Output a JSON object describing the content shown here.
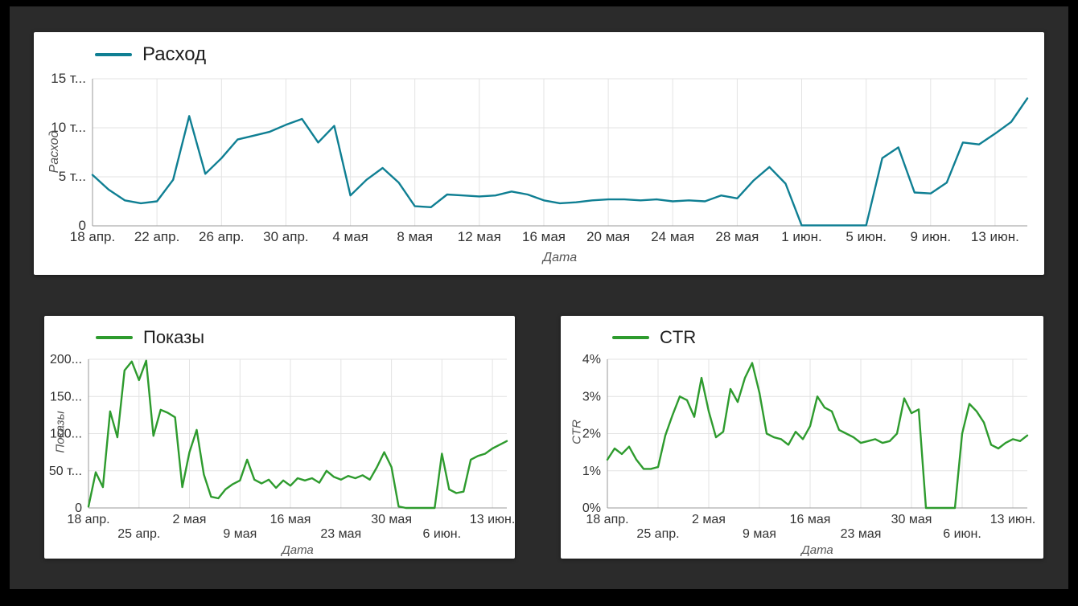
{
  "page": {
    "background_color": "#2b2b2b",
    "frame_color": "#000000",
    "card_color": "#ffffff"
  },
  "chart_data": [
    {
      "type": "line",
      "legend_label": "Расход",
      "ylabel": "Расход",
      "xlabel": "Дата",
      "line_color": "#0f7f93",
      "ymax": 15000,
      "ylim": [
        0,
        15000
      ],
      "grid": true,
      "legend_position": "top-left",
      "y_ticks": [
        0,
        5000,
        10000,
        15000
      ],
      "y_tick_labels": [
        "0",
        "5 т...",
        "10 т...",
        "15 т..."
      ],
      "x_tick_days": [
        0,
        4,
        8,
        12,
        16,
        20,
        24,
        28,
        32,
        36,
        40,
        44,
        48,
        52,
        56
      ],
      "x_tick_labels": [
        "18 апр.",
        "22 апр.",
        "26 апр.",
        "30 апр.",
        "4 мая",
        "8 мая",
        "12 мая",
        "16 мая",
        "20 мая",
        "24 мая",
        "28 мая",
        "1 июн.",
        "5 июн.",
        "9 июн.",
        "13 июн."
      ],
      "values": [
        5200,
        3700,
        2600,
        2300,
        2500,
        4700,
        11200,
        5300,
        6900,
        8800,
        9200,
        9600,
        10300,
        10900,
        8500,
        10200,
        3100,
        4700,
        5900,
        4400,
        2000,
        1900,
        3200,
        3100,
        3000,
        3100,
        3500,
        3200,
        2600,
        2300,
        2400,
        2600,
        2700,
        2700,
        2600,
        2700,
        2500,
        2600,
        2500,
        3100,
        2800,
        4600,
        6000,
        4300,
        50,
        50,
        50,
        50,
        50,
        6900,
        8000,
        3400,
        3300,
        4400,
        8500,
        8300,
        9400,
        10600,
        13000
      ]
    },
    {
      "type": "line",
      "legend_label": "Показы",
      "ylabel": "Показы",
      "xlabel": "Дата",
      "line_color": "#2e9b2e",
      "ymax": 200000,
      "ylim": [
        0,
        200000
      ],
      "grid": true,
      "legend_position": "top-left",
      "y_ticks": [
        0,
        50000,
        100000,
        150000,
        200000
      ],
      "y_tick_labels": [
        "0",
        "50 т...",
        "100...",
        "150...",
        "200..."
      ],
      "x_tick_days": [
        0,
        7,
        14,
        21,
        28,
        35,
        42,
        49,
        56
      ],
      "x_tick_labels": [
        "18 апр.",
        "25 апр.",
        "2 мая",
        "9 мая",
        "16 мая",
        "23 мая",
        "30 мая",
        "6 июн.",
        "13 июн."
      ],
      "values": [
        2000,
        48000,
        28000,
        130000,
        95000,
        185000,
        197000,
        172000,
        198000,
        97000,
        132000,
        128000,
        122000,
        28000,
        75000,
        105000,
        45000,
        15000,
        13000,
        25000,
        32000,
        37000,
        65000,
        38000,
        33000,
        38000,
        27000,
        37000,
        30000,
        40000,
        37000,
        40000,
        34000,
        50000,
        42000,
        38000,
        43000,
        40000,
        44000,
        38000,
        55000,
        75000,
        55000,
        2000,
        0,
        0,
        0,
        0,
        0,
        73000,
        25000,
        20000,
        22000,
        65000,
        70000,
        73000,
        80000,
        85000,
        90000
      ]
    },
    {
      "type": "line",
      "legend_label": "CTR",
      "ylabel": "CTR",
      "xlabel": "Дата",
      "line_color": "#2e9b2e",
      "ymax": 4,
      "ylim": [
        0,
        4
      ],
      "grid": true,
      "legend_position": "top-left",
      "y_ticks": [
        0,
        1,
        2,
        3,
        4
      ],
      "y_tick_labels": [
        "0%",
        "1%",
        "2%",
        "3%",
        "4%"
      ],
      "x_tick_days": [
        0,
        7,
        14,
        21,
        28,
        35,
        42,
        49,
        56
      ],
      "x_tick_labels": [
        "18 апр.",
        "25 апр.",
        "2 мая",
        "9 мая",
        "16 мая",
        "23 мая",
        "30 мая",
        "6 июн.",
        "13 июн."
      ],
      "values": [
        1.3,
        1.6,
        1.45,
        1.65,
        1.3,
        1.05,
        1.05,
        1.1,
        1.95,
        2.5,
        3.0,
        2.9,
        2.45,
        3.5,
        2.6,
        1.9,
        2.05,
        3.2,
        2.85,
        3.5,
        3.9,
        3.1,
        2.0,
        1.9,
        1.85,
        1.7,
        2.05,
        1.85,
        2.2,
        3.0,
        2.7,
        2.6,
        2.1,
        2.0,
        1.9,
        1.75,
        1.8,
        1.85,
        1.75,
        1.8,
        2.0,
        2.95,
        2.55,
        2.65,
        0,
        0,
        0,
        0,
        0,
        2.0,
        2.8,
        2.6,
        2.3,
        1.7,
        1.6,
        1.75,
        1.85,
        1.8,
        1.95
      ]
    }
  ]
}
